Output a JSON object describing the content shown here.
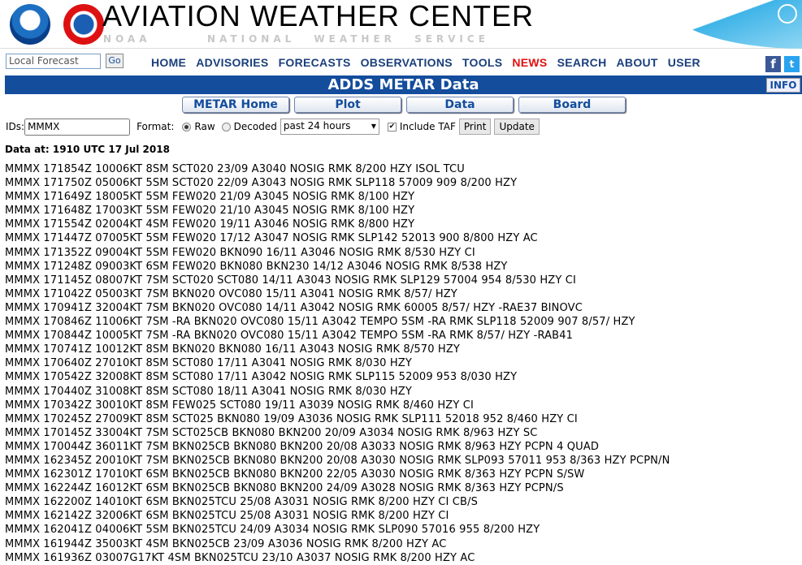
{
  "header": {
    "title": "AVIATION WEATHER CENTER",
    "subtitle": "NOAA   NATIONAL WEATHER SERVICE"
  },
  "search": {
    "placeholder": "Local Forecast",
    "go": "Go"
  },
  "nav": [
    "HOME",
    "ADVISORIES",
    "FORECASTS",
    "OBSERVATIONS",
    "TOOLS",
    "NEWS",
    "SEARCH",
    "ABOUT",
    "USER"
  ],
  "colors": {
    "brand": "#134d9c",
    "news": "#e01010"
  },
  "page_title": "ADDS METAR Data",
  "info": "INFO",
  "tabs": [
    "METAR Home",
    "Plot",
    "Data",
    "Board"
  ],
  "form": {
    "ids_label": "IDs:",
    "ids_value": "MMMX",
    "format_label": "Format:",
    "raw": "Raw",
    "decoded": "Decoded",
    "range": "past 24 hours",
    "include_taf": "Include TAF",
    "print": "Print",
    "update": "Update"
  },
  "data_at": "Data at: 1910 UTC 17 Jul 2018",
  "metars": [
    "MMMX 171854Z 10006KT 8SM SCT020 23/09 A3040 NOSIG RMK 8/200 HZY ISOL TCU",
    "MMMX 171750Z 05006KT 5SM SCT020 22/09 A3043 NOSIG RMK SLP118 57009 909 8/200 HZY",
    "MMMX 171649Z 18005KT 5SM FEW020 21/09 A3045 NOSIG RMK 8/100 HZY",
    "MMMX 171648Z 17003KT 5SM FEW020 21/10 A3045 NOSIG RMK 8/100 HZY",
    "MMMX 171554Z 02004KT 4SM FEW020 19/11 A3046 NOSIG RMK 8/800 HZY",
    "MMMX 171447Z 07005KT 5SM FEW020 17/12 A3047 NOSIG RMK SLP142 52013 900 8/800 HZY AC",
    "MMMX 171352Z 09004KT 5SM FEW020 BKN090 16/11 A3046 NOSIG RMK 8/530 HZY CI",
    "MMMX 171248Z 09003KT 6SM FEW020 BKN080 BKN230 14/12 A3046 NOSIG RMK 8/538 HZY",
    "MMMX 171145Z 08007KT 7SM SCT020 SCT080 14/11 A3043 NOSIG RMK SLP129 57004 954 8/530 HZY CI",
    "MMMX 171042Z 05003KT 7SM BKN020 OVC080 15/11 A3041 NOSIG RMK 8/57/ HZY",
    "MMMX 170941Z 32004KT 7SM BKN020 OVC080 14/11 A3042 NOSIG RMK 60005 8/57/ HZY -RAE37 BINOVC",
    "MMMX 170846Z 11006KT 7SM -RA BKN020 OVC080 15/11 A3042 TEMPO 5SM -RA RMK SLP118 52009 907 8/57/ HZY",
    "MMMX 170844Z 10005KT 7SM -RA BKN020 OVC080 15/11 A3042 TEMPO 5SM -RA RMK 8/57/ HZY -RAB41",
    "MMMX 170741Z 10012KT 8SM BKN020 BKN080 16/11 A3043 NOSIG RMK 8/570 HZY",
    "MMMX 170640Z 27010KT 8SM SCT080 17/11 A3041 NOSIG RMK 8/030 HZY",
    "MMMX 170542Z 32008KT 8SM SCT080 17/11 A3042 NOSIG RMK SLP115 52009 953 8/030 HZY",
    "MMMX 170440Z 31008KT 8SM SCT080 18/11 A3041 NOSIG RMK 8/030 HZY",
    "MMMX 170342Z 30010KT 8SM FEW025 SCT080 19/11 A3039 NOSIG RMK 8/460 HZY CI",
    "MMMX 170245Z 27009KT 8SM SCT025 BKN080 19/09 A3036 NOSIG RMK SLP111 52018 952 8/460 HZY CI",
    "MMMX 170145Z 33004KT 7SM SCT025CB BKN080 BKN200 20/09 A3034 NOSIG RMK 8/963 HZY SC",
    "MMMX 170044Z 36011KT 7SM BKN025CB BKN080 BKN200 20/08 A3033 NOSIG RMK 8/963 HZY PCPN 4 QUAD",
    "MMMX 162345Z 20010KT 7SM BKN025CB BKN080 BKN200 20/08 A3030 NOSIG RMK SLP093 57011 953 8/363 HZY PCPN/N",
    "MMMX 162301Z 17010KT 6SM BKN025CB BKN080 BKN200 22/05 A3030 NOSIG RMK 8/363 HZY PCPN S/SW",
    "MMMX 162244Z 16012KT 6SM BKN025CB BKN080 BKN200 24/09 A3028 NOSIG RMK 8/363 HZY PCPN/S",
    "MMMX 162200Z 14010KT 6SM BKN025TCU 25/08 A3031 NOSIG RMK 8/200 HZY CI CB/S",
    "MMMX 162142Z 32006KT 6SM BKN025TCU 25/08 A3031 NOSIG RMK 8/200 HZY CI",
    "MMMX 162041Z 04006KT 5SM BKN025TCU 24/09 A3034 NOSIG RMK SLP090 57016 955 8/200 HZY",
    "MMMX 161944Z 35003KT 4SM BKN025CB 23/09 A3036 NOSIG RMK 8/200 HZY AC",
    "MMMX 161936Z 03007G17KT 4SM BKN025TCU 23/10 A3037 NOSIG RMK 8/200 HZY AC"
  ]
}
